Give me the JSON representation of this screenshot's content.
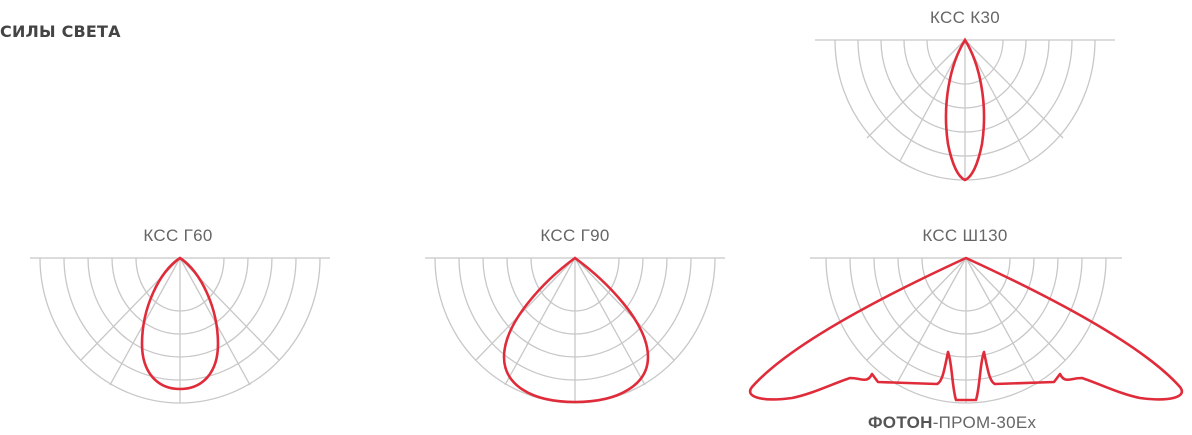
{
  "heading": "СИЛЫ СВЕТА",
  "colors": {
    "curve": "#e02c3a",
    "grid": "#c8c8c8"
  },
  "diagrams": [
    {
      "title": "КСС К30"
    },
    {
      "title": "КСС Г60"
    },
    {
      "title": "КСС Г90"
    },
    {
      "title": "КСС Ш130"
    }
  ],
  "caption": {
    "bold": "ФОТОН",
    "rest": "-ПРОМ-30Ex"
  }
}
